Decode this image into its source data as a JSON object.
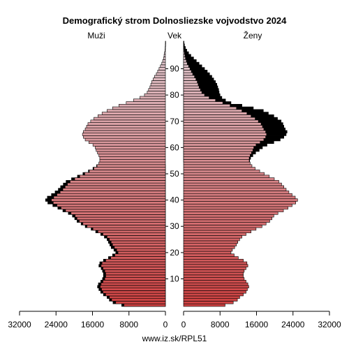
{
  "chart_data": {
    "type": "bar",
    "title": "Demografický strom Dolnosliezske vojvodstvo 2024",
    "left_label": "Muži",
    "center_label": "Vek",
    "right_label": "Ženy",
    "footer": "www.iz.sk/RPL51",
    "x_ticks_left": [
      "32000",
      "24000",
      "16000",
      "8000",
      "0"
    ],
    "x_ticks_right": [
      "0",
      "8000",
      "16000",
      "24000",
      "32000"
    ],
    "age_ticks": [
      "10",
      "20",
      "30",
      "40",
      "50",
      "60",
      "70",
      "80",
      "90"
    ],
    "xlim": [
      0,
      32000
    ],
    "age_range": [
      0,
      100
    ],
    "series": [
      {
        "name": "Muži",
        "age": [
          0,
          1,
          2,
          3,
          4,
          5,
          6,
          7,
          8,
          9,
          10,
          11,
          12,
          13,
          14,
          15,
          16,
          17,
          18,
          19,
          20,
          21,
          22,
          23,
          24,
          25,
          26,
          27,
          28,
          29,
          30,
          31,
          32,
          33,
          34,
          35,
          36,
          37,
          38,
          39,
          40,
          41,
          42,
          43,
          44,
          45,
          46,
          47,
          48,
          49,
          50,
          51,
          52,
          53,
          54,
          55,
          56,
          57,
          58,
          59,
          60,
          61,
          62,
          63,
          64,
          65,
          66,
          67,
          68,
          69,
          70,
          71,
          72,
          73,
          74,
          75,
          76,
          77,
          78,
          79,
          80,
          81,
          82,
          83,
          84,
          85,
          86,
          87,
          88,
          89,
          90,
          91,
          92,
          93,
          94,
          95,
          96,
          97,
          98,
          99,
          100
        ],
        "value": [
          9600,
          11500,
          12300,
          12800,
          13600,
          14200,
          14600,
          14900,
          14700,
          14200,
          13800,
          13600,
          13600,
          13800,
          14100,
          14600,
          14400,
          13600,
          12500,
          11600,
          10900,
          11300,
          11900,
          12200,
          12500,
          12800,
          13400,
          14200,
          15300,
          16300,
          17600,
          18500,
          19400,
          19900,
          20400,
          21300,
          22500,
          23600,
          24700,
          25800,
          26300,
          25900,
          25000,
          24200,
          23500,
          23000,
          22400,
          21800,
          20600,
          19300,
          18100,
          16900,
          15900,
          15100,
          14600,
          14400,
          14400,
          14600,
          14900,
          15200,
          15400,
          15900,
          16800,
          17600,
          18000,
          18200,
          18000,
          17600,
          17300,
          17000,
          16400,
          15700,
          14800,
          13900,
          12800,
          11600,
          10200,
          8600,
          7000,
          5600,
          4600,
          4000,
          3700,
          3400,
          3200,
          3000,
          2700,
          2400,
          2000,
          1700,
          1400,
          1100,
          800,
          600,
          400,
          300,
          200,
          100,
          60,
          30,
          15
        ]
      },
      {
        "name": "Ženy",
        "age": [
          0,
          1,
          2,
          3,
          4,
          5,
          6,
          7,
          8,
          9,
          10,
          11,
          12,
          13,
          14,
          15,
          16,
          17,
          18,
          19,
          20,
          21,
          22,
          23,
          24,
          25,
          26,
          27,
          28,
          29,
          30,
          31,
          32,
          33,
          34,
          35,
          36,
          37,
          38,
          39,
          40,
          41,
          42,
          43,
          44,
          45,
          46,
          47,
          48,
          49,
          50,
          51,
          52,
          53,
          54,
          55,
          56,
          57,
          58,
          59,
          60,
          61,
          62,
          63,
          64,
          65,
          66,
          67,
          68,
          69,
          70,
          71,
          72,
          73,
          74,
          75,
          76,
          77,
          78,
          79,
          80,
          81,
          82,
          83,
          84,
          85,
          86,
          87,
          88,
          89,
          90,
          91,
          92,
          93,
          94,
          95,
          96,
          97,
          98,
          99,
          100
        ],
        "value": [
          9100,
          10900,
          11800,
          12300,
          13100,
          13700,
          14000,
          14300,
          14100,
          13700,
          13300,
          13100,
          13100,
          13300,
          13700,
          14100,
          13900,
          13100,
          12000,
          11100,
          10400,
          10700,
          11200,
          11600,
          11900,
          12300,
          12800,
          13700,
          14800,
          15900,
          17200,
          18100,
          18900,
          19400,
          19800,
          20700,
          21900,
          22900,
          23800,
          24600,
          25000,
          24500,
          23800,
          23100,
          22500,
          22000,
          21500,
          20900,
          19900,
          18800,
          17700,
          16700,
          15700,
          15000,
          14600,
          14500,
          14700,
          15200,
          15800,
          16600,
          17300,
          18300,
          19800,
          21200,
          22000,
          22500,
          22700,
          22300,
          22000,
          21800,
          21400,
          20600,
          19800,
          18600,
          17500,
          15300,
          12800,
          10400,
          9200,
          8400,
          8000,
          7800,
          7700,
          7500,
          7300,
          7000,
          6600,
          6200,
          5700,
          5200,
          4600,
          4000,
          3400,
          2800,
          2200,
          1600,
          1100,
          700,
          400,
          200,
          80
        ]
      }
    ]
  }
}
